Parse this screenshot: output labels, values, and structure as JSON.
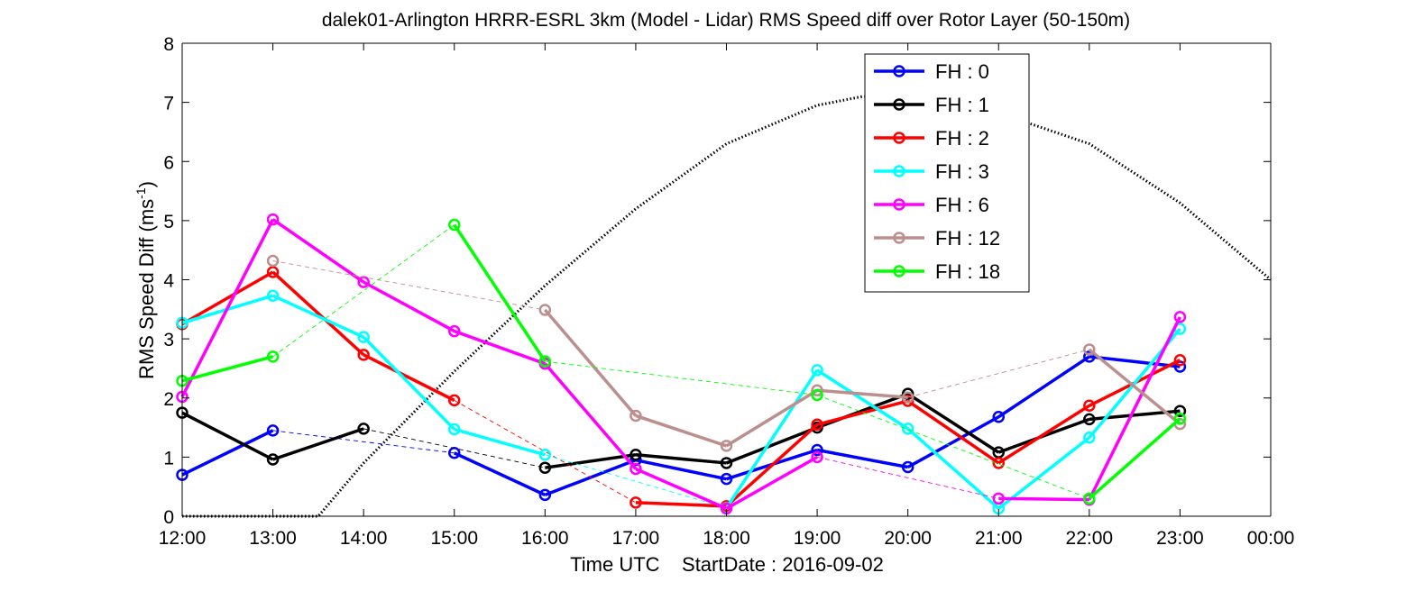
{
  "chart_data": {
    "type": "line",
    "title": "dalek01-Arlington HRRR-ESRL 3km (Model - Lidar) RMS Speed diff over Rotor Layer (50-150m)",
    "ylabel_main": "RMS Speed Diff (ms",
    "ylabel_sup": "-1",
    "ylabel_close": ")",
    "xlabel": "Time UTC    StartDate : 2016-09-02",
    "x_tick_labels": [
      "12:00",
      "13:00",
      "14:00",
      "15:00",
      "16:00",
      "17:00",
      "18:00",
      "19:00",
      "20:00",
      "21:00",
      "22:00",
      "23:00",
      "00:00"
    ],
    "y_tick_labels": [
      "0",
      "1",
      "2",
      "3",
      "4",
      "5",
      "6",
      "7",
      "8"
    ],
    "xlim": [
      12,
      24
    ],
    "ylim": [
      0,
      8
    ],
    "grid": false,
    "legend_position": "top-right (inside axes)",
    "series": [
      {
        "name": "FH : 0",
        "color": "#0000ff",
        "points": [
          [
            12,
            0.7
          ],
          [
            13,
            1.45
          ],
          [
            15,
            1.07
          ],
          [
            16,
            0.36
          ],
          [
            17,
            0.95
          ],
          [
            18,
            0.63
          ],
          [
            19,
            1.12
          ],
          [
            20,
            0.83
          ],
          [
            21,
            1.68
          ],
          [
            22,
            2.7
          ],
          [
            23,
            2.53
          ]
        ]
      },
      {
        "name": "FH : 1",
        "color": "#000000",
        "points": [
          [
            12,
            1.75
          ],
          [
            13,
            0.96
          ],
          [
            14,
            1.48
          ],
          [
            16,
            0.82
          ],
          [
            17,
            1.04
          ],
          [
            18,
            0.9
          ],
          [
            19,
            1.5
          ],
          [
            20,
            2.07
          ],
          [
            21,
            1.08
          ],
          [
            22,
            1.64
          ],
          [
            23,
            1.78
          ]
        ]
      },
      {
        "name": "FH : 2",
        "color": "#ff0000",
        "points": [
          [
            12,
            3.25
          ],
          [
            13,
            4.13
          ],
          [
            14,
            2.73
          ],
          [
            15,
            1.96
          ],
          [
            17,
            0.23
          ],
          [
            18,
            0.17
          ],
          [
            19,
            1.55
          ],
          [
            20,
            1.95
          ],
          [
            21,
            0.9
          ],
          [
            22,
            1.87
          ],
          [
            23,
            2.64
          ]
        ]
      },
      {
        "name": "FH : 3",
        "color": "#00ffff",
        "points": [
          [
            12,
            3.27
          ],
          [
            13,
            3.73
          ],
          [
            14,
            3.03
          ],
          [
            15,
            1.47
          ],
          [
            16,
            1.04
          ],
          [
            18,
            0.14
          ],
          [
            19,
            2.47
          ],
          [
            20,
            1.48
          ],
          [
            21,
            0.13
          ],
          [
            22,
            1.33
          ],
          [
            23,
            3.17
          ]
        ]
      },
      {
        "name": "FH : 6",
        "color": "#ff00ff",
        "points": [
          [
            12,
            2.02
          ],
          [
            13,
            5.02
          ],
          [
            14,
            3.96
          ],
          [
            15,
            3.13
          ],
          [
            16,
            2.58
          ],
          [
            17,
            0.8
          ],
          [
            18,
            0.13
          ],
          [
            19,
            1.0
          ],
          [
            21,
            0.3
          ],
          [
            22,
            0.28
          ],
          [
            23,
            3.37
          ]
        ]
      },
      {
        "name": "FH : 12",
        "color": "#bc8f8f",
        "points": [
          [
            13,
            4.32
          ],
          [
            16,
            3.49
          ],
          [
            17,
            1.7
          ],
          [
            18,
            1.19
          ],
          [
            19,
            2.13
          ],
          [
            20,
            2.01
          ],
          [
            22,
            2.82
          ],
          [
            23,
            1.56
          ]
        ]
      },
      {
        "name": "FH : 18",
        "color": "#00ff00",
        "points": [
          [
            12,
            2.29
          ],
          [
            13,
            2.7
          ],
          [
            15,
            4.93
          ],
          [
            16,
            2.62
          ],
          [
            19,
            2.05
          ],
          [
            22,
            0.3
          ],
          [
            23,
            1.65
          ]
        ]
      }
    ],
    "reference_curve": {
      "style": "dotted",
      "color": "#000000",
      "points": [
        [
          12,
          0
        ],
        [
          13.5,
          0
        ],
        [
          14,
          0.9
        ],
        [
          15,
          2.45
        ],
        [
          16,
          3.9
        ],
        [
          17,
          5.2
        ],
        [
          18,
          6.3
        ],
        [
          19,
          6.95
        ],
        [
          19.5,
          7.1
        ],
        [
          20,
          7.1
        ],
        [
          21,
          6.82
        ],
        [
          22,
          6.3
        ],
        [
          23,
          5.3
        ],
        [
          24,
          4.0
        ]
      ]
    }
  }
}
